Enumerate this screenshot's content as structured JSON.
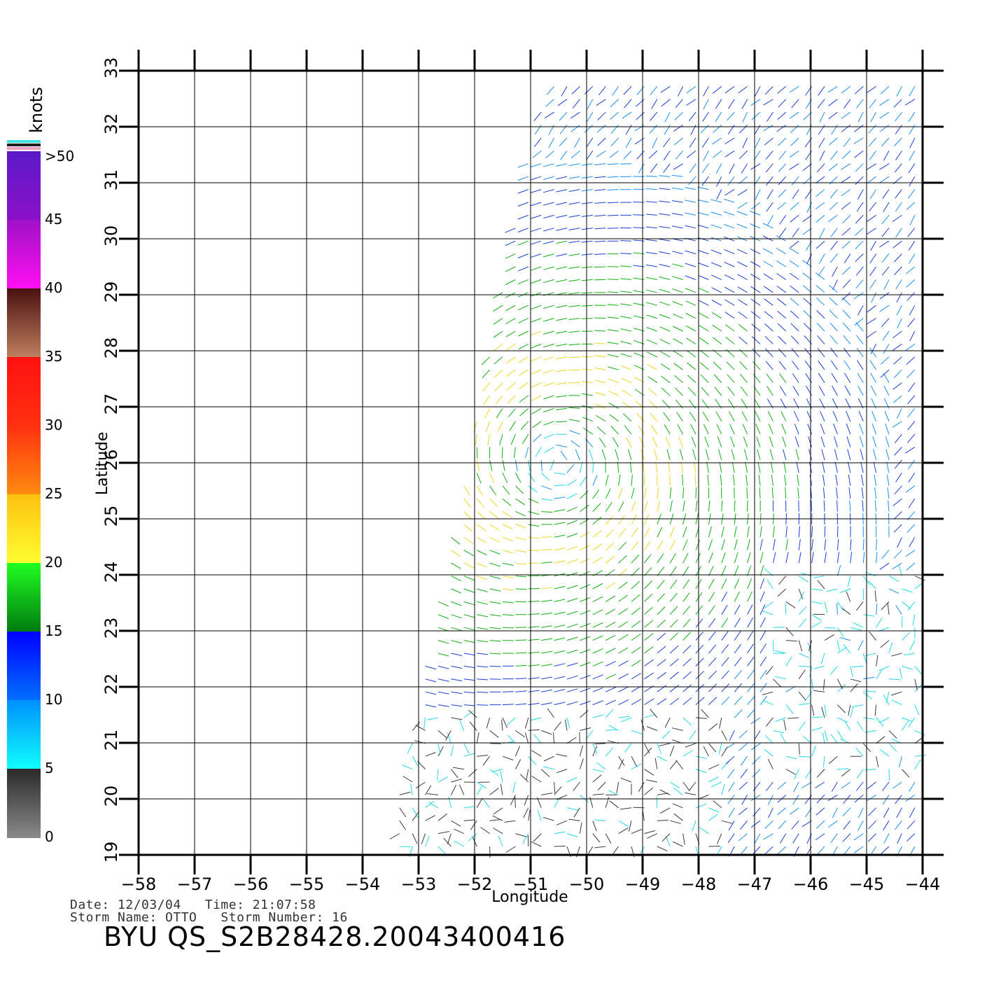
{
  "map": {
    "lon_min": -58,
    "lon_max": -44,
    "lat_min": 19,
    "lat_max": 33,
    "x_label": "Longitude",
    "y_label": "Latitude",
    "lon_ticks": [
      "−58",
      "−57",
      "−56",
      "−55",
      "−54",
      "−53",
      "−52",
      "−51",
      "−50",
      "−49",
      "−48",
      "−47",
      "−46",
      "−45",
      "−44"
    ],
    "lat_ticks": [
      "19",
      "20",
      "21",
      "22",
      "23",
      "24",
      "25",
      "26",
      "27",
      "28",
      "29",
      "30",
      "31",
      "32",
      "33"
    ],
    "storm_center": {
      "lon": -50.5,
      "lat": 26.0
    }
  },
  "colorbar": {
    "unit_label": "knots",
    "labels": [
      ">50",
      "45",
      "40",
      "35",
      "30",
      "25",
      "20",
      "15",
      "10",
      "5",
      "0"
    ],
    "segments": [
      {
        "from": "#5a1ac8",
        "to": "#8c10c8"
      },
      {
        "from": "#a010c8",
        "to": "#ff10f0"
      },
      {
        "from": "#4a1010",
        "to": "#c08060"
      },
      {
        "from": "#ff1010",
        "to": "#ff3010"
      },
      {
        "from": "#ff3010",
        "to": "#ff8c10"
      },
      {
        "from": "#ffc010",
        "to": "#ffff30"
      },
      {
        "from": "#20ff20",
        "to": "#007a10"
      },
      {
        "from": "#0000ff",
        "to": "#0070ff"
      },
      {
        "from": "#0090ff",
        "to": "#10ffff"
      },
      {
        "from": "#2a2a2a",
        "to": "#8a8a8a"
      }
    ],
    "cap_colors": [
      "#40e0e0",
      "#202020",
      "#f0a0c0"
    ]
  },
  "info": {
    "date_line": "Date: 12/03/04   Time: 21:07:58",
    "storm_line": "Storm Name: OTTO   Storm Number: 16",
    "title": "BYU QS_S2B28428.20043400416"
  }
}
